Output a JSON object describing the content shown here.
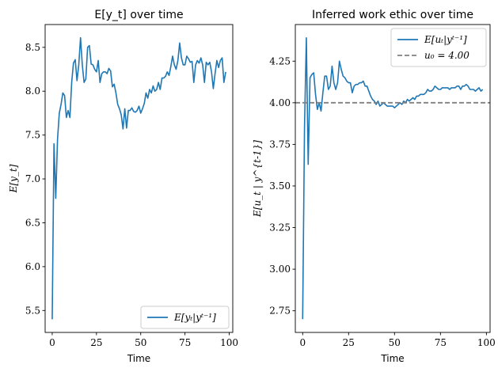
{
  "chart_data": [
    {
      "type": "line",
      "title": "E[y_t] over time",
      "xlabel": "Time",
      "ylabel": "E[y_t]",
      "xlim": [
        -4,
        102
      ],
      "ylim": [
        5.25,
        8.76
      ],
      "xticks": [
        0,
        25,
        50,
        75,
        100
      ],
      "yticks": [
        5.5,
        6.0,
        6.5,
        7.0,
        7.5,
        8.0,
        8.5
      ],
      "xtick_labels": [
        "0",
        "25",
        "50",
        "75",
        "100"
      ],
      "ytick_labels": [
        "5.5",
        "6.0",
        "6.5",
        "7.0",
        "7.5",
        "8.0",
        "8.5"
      ],
      "legend_position": "lower-right",
      "series": [
        {
          "name": "E[y_t | y^{t-1}]",
          "legend_label": "E[yₜ|yᵗ⁻¹]",
          "color": "#1f77b4",
          "x": [
            0,
            1,
            2,
            3,
            4,
            5,
            6,
            7,
            8,
            9,
            10,
            11,
            12,
            13,
            14,
            15,
            16,
            17,
            18,
            19,
            20,
            21,
            22,
            23,
            24,
            25,
            26,
            27,
            28,
            29,
            30,
            31,
            32,
            33,
            34,
            35,
            36,
            37,
            38,
            39,
            40,
            41,
            42,
            43,
            44,
            45,
            46,
            47,
            48,
            49,
            50,
            51,
            52,
            53,
            54,
            55,
            56,
            57,
            58,
            59,
            60,
            61,
            62,
            63,
            64,
            65,
            66,
            67,
            68,
            69,
            70,
            71,
            72,
            73,
            74,
            75,
            76,
            77,
            78,
            79,
            80,
            81,
            82,
            83,
            84,
            85,
            86,
            87,
            88,
            89,
            90,
            91,
            92,
            93,
            94,
            95,
            96,
            97,
            98
          ],
          "y": [
            5.4,
            7.4,
            6.78,
            7.45,
            7.75,
            7.85,
            7.98,
            7.95,
            7.7,
            7.78,
            7.7,
            8.1,
            8.32,
            8.36,
            8.12,
            8.3,
            8.61,
            8.3,
            8.1,
            8.14,
            8.5,
            8.52,
            8.31,
            8.3,
            8.25,
            8.22,
            8.35,
            8.1,
            8.2,
            8.22,
            8.22,
            8.2,
            8.26,
            8.23,
            8.05,
            8.08,
            7.98,
            7.85,
            7.8,
            7.73,
            7.57,
            7.8,
            7.58,
            7.78,
            7.78,
            7.81,
            7.77,
            7.76,
            7.78,
            7.83,
            7.75,
            7.8,
            7.86,
            7.98,
            7.92,
            8.02,
            7.98,
            8.06,
            8.0,
            8.02,
            8.1,
            8.02,
            8.15,
            8.15,
            8.17,
            8.22,
            8.18,
            8.28,
            8.4,
            8.3,
            8.25,
            8.35,
            8.55,
            8.38,
            8.3,
            8.3,
            8.4,
            8.37,
            8.33,
            8.34,
            8.1,
            8.3,
            8.35,
            8.32,
            8.38,
            8.3,
            8.1,
            8.33,
            8.3,
            8.33,
            8.22,
            8.03,
            8.2,
            8.35,
            8.27,
            8.35,
            8.38,
            8.1,
            8.22
          ]
        }
      ]
    },
    {
      "type": "line",
      "title": "Inferred work ethic over time",
      "xlabel": "Time",
      "ylabel": "E[u_t | y^{t-1}]",
      "xlim": [
        -4,
        102
      ],
      "ylim": [
        2.62,
        4.47
      ],
      "xticks": [
        0,
        25,
        50,
        75,
        100
      ],
      "yticks": [
        2.75,
        3.0,
        3.25,
        3.5,
        3.75,
        4.0,
        4.25
      ],
      "xtick_labels": [
        "0",
        "25",
        "50",
        "75",
        "100"
      ],
      "ytick_labels": [
        "2.75",
        "3.00",
        "3.25",
        "3.50",
        "3.75",
        "4.00",
        "4.25"
      ],
      "legend_position": "top-right",
      "series": [
        {
          "name": "E[u_t | y^{t-1}]",
          "legend_label": "E[uₜ|yᵗ⁻¹]",
          "color": "#1f77b4",
          "style": "solid",
          "x": [
            0,
            1,
            2,
            3,
            4,
            5,
            6,
            7,
            8,
            9,
            10,
            11,
            12,
            13,
            14,
            15,
            16,
            17,
            18,
            19,
            20,
            21,
            22,
            23,
            24,
            25,
            26,
            27,
            28,
            29,
            30,
            31,
            32,
            33,
            34,
            35,
            36,
            37,
            38,
            39,
            40,
            41,
            42,
            43,
            44,
            45,
            46,
            47,
            48,
            49,
            50,
            51,
            52,
            53,
            54,
            55,
            56,
            57,
            58,
            59,
            60,
            61,
            62,
            63,
            64,
            65,
            66,
            67,
            68,
            69,
            70,
            71,
            72,
            73,
            74,
            75,
            76,
            77,
            78,
            79,
            80,
            81,
            82,
            83,
            84,
            85,
            86,
            87,
            88,
            89,
            90,
            91,
            92,
            93,
            94,
            95,
            96,
            97,
            98
          ],
          "y": [
            2.7,
            3.85,
            4.39,
            3.63,
            4.15,
            4.17,
            4.18,
            4.05,
            3.96,
            4.0,
            3.95,
            4.06,
            4.16,
            4.16,
            4.08,
            4.1,
            4.22,
            4.12,
            4.08,
            4.12,
            4.25,
            4.2,
            4.16,
            4.15,
            4.13,
            4.12,
            4.12,
            4.06,
            4.1,
            4.11,
            4.11,
            4.12,
            4.12,
            4.13,
            4.1,
            4.1,
            4.07,
            4.04,
            4.02,
            4.01,
            3.99,
            4.01,
            3.98,
            3.99,
            4.0,
            3.99,
            3.98,
            3.98,
            3.98,
            3.98,
            3.97,
            3.98,
            3.99,
            4.0,
            3.99,
            4.01,
            4.0,
            4.02,
            4.01,
            4.02,
            4.03,
            4.02,
            4.04,
            4.04,
            4.05,
            4.05,
            4.05,
            4.06,
            4.08,
            4.07,
            4.07,
            4.08,
            4.1,
            4.09,
            4.08,
            4.08,
            4.09,
            4.09,
            4.09,
            4.09,
            4.08,
            4.09,
            4.09,
            4.09,
            4.1,
            4.1,
            4.08,
            4.1,
            4.1,
            4.11,
            4.1,
            4.08,
            4.08,
            4.08,
            4.07,
            4.08,
            4.09,
            4.07,
            4.08
          ]
        },
        {
          "name": "u_0 = 4.00",
          "legend_label": "u₀ = 4.00",
          "color": "#808080",
          "style": "dashed",
          "hline": 4.0
        }
      ]
    }
  ]
}
